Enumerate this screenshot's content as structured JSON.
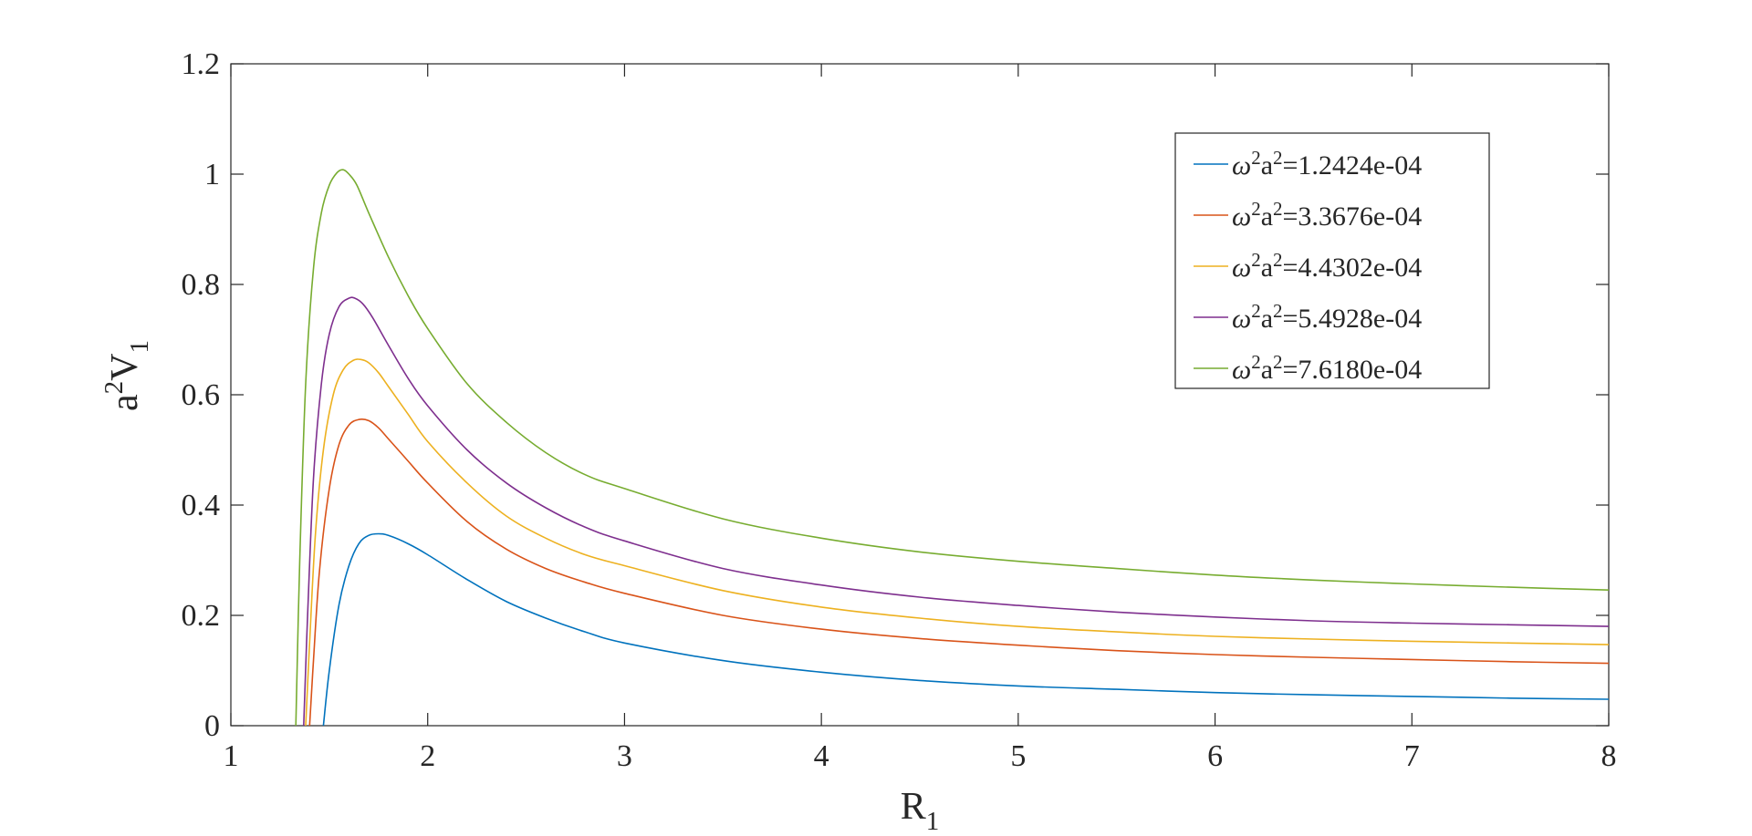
{
  "chart_data": {
    "type": "line",
    "xlabel": "R_1",
    "ylabel": "a^2V_1",
    "xlim": [
      1,
      8
    ],
    "ylim": [
      0,
      1.2
    ],
    "xticks": [
      "1",
      "2",
      "3",
      "4",
      "5",
      "6",
      "7",
      "8"
    ],
    "yticks": [
      "0",
      "0.2",
      "0.4",
      "0.6",
      "0.8",
      "1",
      "1.2"
    ],
    "grid": false,
    "legend_position": "top-right",
    "series": [
      {
        "name": "ω²a²=1.2424e-04",
        "color": "#0072BD",
        "x": [
          1.47,
          1.5,
          1.55,
          1.6,
          1.65,
          1.7,
          1.75,
          1.8,
          1.9,
          2.0,
          2.2,
          2.4,
          2.6,
          2.8,
          3.0,
          3.5,
          4.0,
          4.5,
          5.0,
          5.5,
          6.0,
          6.5,
          7.0,
          7.5,
          8.0
        ],
        "y": [
          0.0,
          0.1,
          0.22,
          0.29,
          0.33,
          0.345,
          0.348,
          0.345,
          0.33,
          0.31,
          0.265,
          0.225,
          0.195,
          0.17,
          0.15,
          0.118,
          0.097,
          0.082,
          0.072,
          0.066,
          0.06,
          0.056,
          0.053,
          0.05,
          0.048
        ]
      },
      {
        "name": "ω²a²=3.3676e-04",
        "color": "#D95319",
        "x": [
          1.4,
          1.42,
          1.45,
          1.5,
          1.55,
          1.6,
          1.65,
          1.7,
          1.75,
          1.8,
          1.9,
          2.0,
          2.2,
          2.4,
          2.6,
          2.8,
          3.0,
          3.5,
          4.0,
          4.5,
          5.0,
          5.5,
          6.0,
          6.5,
          7.0,
          7.5,
          8.0
        ],
        "y": [
          0.0,
          0.12,
          0.28,
          0.43,
          0.51,
          0.545,
          0.555,
          0.553,
          0.54,
          0.52,
          0.48,
          0.44,
          0.37,
          0.32,
          0.285,
          0.26,
          0.24,
          0.2,
          0.175,
          0.158,
          0.146,
          0.136,
          0.129,
          0.124,
          0.12,
          0.116,
          0.113
        ]
      },
      {
        "name": "ω²a²=4.4302e-04",
        "color": "#EDB120",
        "x": [
          1.38,
          1.4,
          1.43,
          1.47,
          1.52,
          1.57,
          1.62,
          1.66,
          1.7,
          1.75,
          1.8,
          1.9,
          2.0,
          2.2,
          2.4,
          2.6,
          2.8,
          3.0,
          3.5,
          4.0,
          4.5,
          5.0,
          5.5,
          6.0,
          6.5,
          7.0,
          7.5,
          8.0
        ],
        "y": [
          0.0,
          0.15,
          0.35,
          0.5,
          0.6,
          0.645,
          0.662,
          0.664,
          0.658,
          0.64,
          0.615,
          0.565,
          0.515,
          0.44,
          0.38,
          0.34,
          0.31,
          0.29,
          0.245,
          0.215,
          0.195,
          0.18,
          0.17,
          0.162,
          0.157,
          0.153,
          0.15,
          0.147
        ]
      },
      {
        "name": "ω²a²=5.4928e-04",
        "color": "#7E2F8E",
        "x": [
          1.37,
          1.39,
          1.42,
          1.46,
          1.5,
          1.55,
          1.6,
          1.63,
          1.67,
          1.72,
          1.8,
          1.9,
          2.0,
          2.2,
          2.4,
          2.6,
          2.8,
          3.0,
          3.5,
          4.0,
          4.5,
          5.0,
          5.5,
          6.0,
          6.5,
          7.0,
          7.5,
          8.0
        ],
        "y": [
          0.0,
          0.2,
          0.45,
          0.62,
          0.71,
          0.76,
          0.775,
          0.775,
          0.765,
          0.74,
          0.69,
          0.63,
          0.58,
          0.5,
          0.44,
          0.395,
          0.36,
          0.335,
          0.285,
          0.255,
          0.233,
          0.218,
          0.206,
          0.197,
          0.19,
          0.186,
          0.183,
          0.18
        ]
      },
      {
        "name": "ω²a²=7.6180e-04",
        "color": "#77AC30",
        "x": [
          1.33,
          1.35,
          1.38,
          1.42,
          1.46,
          1.5,
          1.54,
          1.57,
          1.6,
          1.64,
          1.7,
          1.8,
          1.9,
          2.0,
          2.2,
          2.4,
          2.6,
          2.8,
          3.0,
          3.5,
          4.0,
          4.5,
          5.0,
          5.5,
          6.0,
          6.5,
          7.0,
          7.5,
          8.0
        ],
        "y": [
          0.0,
          0.3,
          0.62,
          0.83,
          0.93,
          0.98,
          1.003,
          1.008,
          1.0,
          0.98,
          0.93,
          0.85,
          0.78,
          0.72,
          0.62,
          0.55,
          0.495,
          0.455,
          0.43,
          0.375,
          0.34,
          0.315,
          0.298,
          0.285,
          0.273,
          0.264,
          0.257,
          0.251,
          0.246
        ]
      }
    ]
  }
}
